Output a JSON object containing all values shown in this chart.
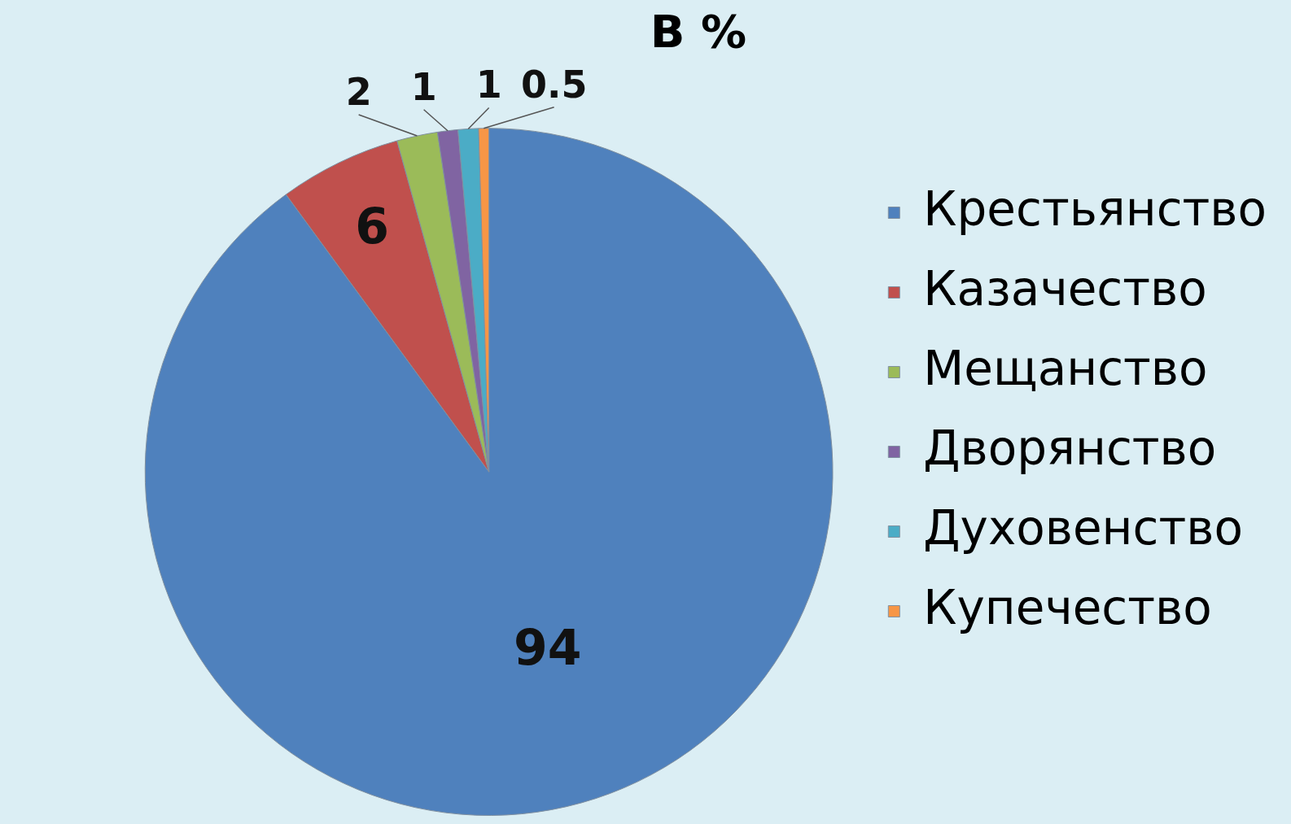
{
  "chart_data": {
    "type": "pie",
    "title": "В %",
    "categories": [
      "Крестьянство",
      "Казачество",
      "Мещанство",
      "Дворянство",
      "Духовенство",
      "Купечество"
    ],
    "values": [
      94,
      6,
      2,
      1,
      1,
      0.5
    ],
    "colors": [
      "#4f81bd",
      "#c0504d",
      "#9bbb59",
      "#8064a2",
      "#4bacc6",
      "#f79646"
    ],
    "data_labels": true,
    "legend": "right"
  }
}
